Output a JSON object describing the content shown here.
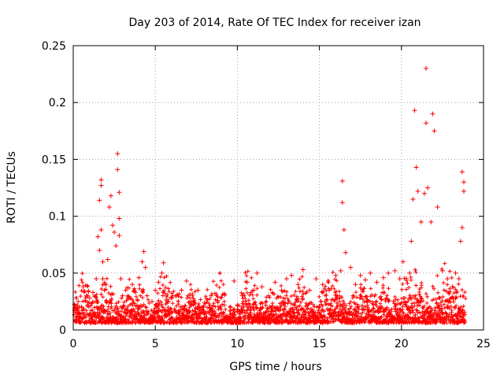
{
  "chart_data": {
    "type": "scatter",
    "title": "Day 203 of 2014, Rate Of TEC Index for receiver izan",
    "xlabel": "GPS time / hours",
    "ylabel": "ROTI / TECUs",
    "xlim": [
      0,
      25
    ],
    "ylim": [
      0,
      0.25
    ],
    "xticks": [
      0,
      5,
      10,
      15,
      20,
      25
    ],
    "xtick_labels": [
      "0",
      "5",
      "10",
      "15",
      "20",
      "25"
    ],
    "yticks": [
      0,
      0.05,
      0.1,
      0.15,
      0.2,
      0.25
    ],
    "ytick_labels": [
      "0",
      "0.05",
      "0.1",
      "0.15",
      "0.2",
      "0.25"
    ],
    "grid": true,
    "marker": "+",
    "series": [
      {
        "name": "ROTI",
        "color": "#ff0000",
        "x": [
          0.1,
          0.2,
          0.3,
          0.5,
          0.6,
          0.8,
          1.0,
          1.2,
          1.4,
          1.5,
          1.6,
          1.6,
          1.7,
          1.7,
          1.7,
          1.8,
          1.8,
          1.9,
          2.0,
          2.1,
          2.2,
          2.3,
          2.4,
          2.5,
          2.6,
          2.7,
          2.7,
          2.8,
          2.8,
          2.8,
          2.9,
          3.0,
          3.2,
          3.4,
          3.6,
          3.8,
          4.0,
          4.2,
          4.3,
          4.4,
          4.5,
          4.8,
          5.0,
          5.2,
          5.4,
          5.5,
          5.6,
          5.8,
          6.0,
          6.3,
          6.6,
          6.9,
          7.0,
          7.3,
          7.6,
          8.0,
          8.4,
          8.8,
          9.2,
          9.6,
          9.8,
          10.0,
          10.3,
          10.6,
          11.0,
          11.2,
          11.5,
          11.9,
          12.3,
          12.7,
          13.0,
          13.3,
          13.7,
          14.0,
          14.4,
          14.8,
          15.2,
          15.6,
          16.0,
          16.3,
          16.4,
          16.4,
          16.5,
          16.6,
          16.9,
          17.2,
          17.5,
          17.8,
          18.1,
          18.5,
          18.9,
          19.2,
          19.6,
          19.9,
          20.1,
          20.3,
          20.5,
          20.6,
          20.7,
          20.8,
          20.9,
          21.0,
          21.2,
          21.4,
          21.5,
          21.5,
          21.6,
          21.8,
          21.9,
          22.0,
          22.2,
          22.5,
          22.8,
          23.1,
          23.3,
          23.5,
          23.6,
          23.7,
          23.7,
          23.8,
          23.8
        ],
        "y": [
          0.022,
          0.018,
          0.025,
          0.02,
          0.038,
          0.03,
          0.028,
          0.033,
          0.045,
          0.082,
          0.07,
          0.114,
          0.132,
          0.127,
          0.088,
          0.06,
          0.045,
          0.035,
          0.04,
          0.062,
          0.108,
          0.118,
          0.092,
          0.086,
          0.074,
          0.155,
          0.141,
          0.121,
          0.098,
          0.083,
          0.045,
          0.03,
          0.035,
          0.028,
          0.04,
          0.033,
          0.046,
          0.06,
          0.069,
          0.055,
          0.03,
          0.025,
          0.035,
          0.042,
          0.05,
          0.059,
          0.032,
          0.025,
          0.028,
          0.03,
          0.035,
          0.043,
          0.03,
          0.028,
          0.035,
          0.024,
          0.03,
          0.026,
          0.022,
          0.02,
          0.043,
          0.022,
          0.03,
          0.042,
          0.035,
          0.05,
          0.038,
          0.03,
          0.042,
          0.035,
          0.045,
          0.048,
          0.04,
          0.053,
          0.035,
          0.045,
          0.04,
          0.035,
          0.048,
          0.052,
          0.131,
          0.112,
          0.088,
          0.068,
          0.055,
          0.04,
          0.048,
          0.044,
          0.05,
          0.042,
          0.046,
          0.05,
          0.052,
          0.045,
          0.06,
          0.045,
          0.05,
          0.078,
          0.115,
          0.193,
          0.143,
          0.122,
          0.095,
          0.12,
          0.23,
          0.182,
          0.125,
          0.095,
          0.19,
          0.175,
          0.108,
          0.052,
          0.045,
          0.038,
          0.05,
          0.045,
          0.078,
          0.09,
          0.139,
          0.13,
          0.122
        ]
      }
    ]
  }
}
